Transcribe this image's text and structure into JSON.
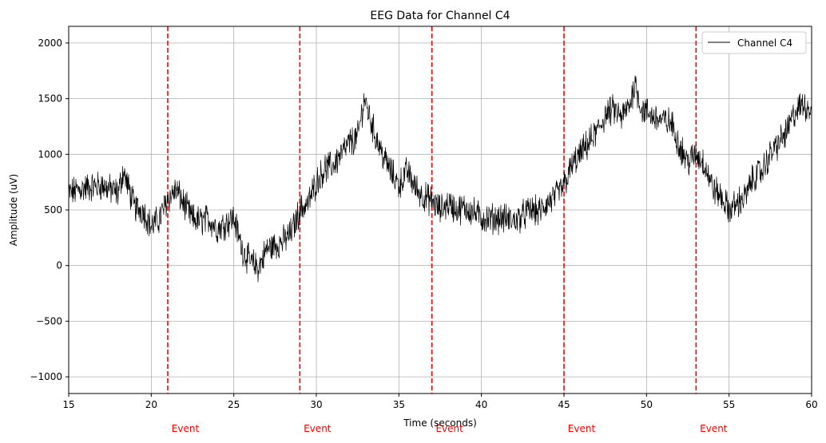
{
  "chart_data": {
    "type": "line",
    "title": "EEG Data for Channel C4",
    "xlabel": "Time (seconds)",
    "ylabel": "Amplitude (uV)",
    "xlim": [
      15,
      60
    ],
    "ylim": [
      -1150,
      2150
    ],
    "xticks": [
      15,
      20,
      25,
      30,
      35,
      40,
      45,
      50,
      55,
      60
    ],
    "xtick_labels": [
      "15",
      "20",
      "25",
      "30",
      "35",
      "40",
      "45",
      "50",
      "55",
      "60"
    ],
    "yticks": [
      -1000,
      -500,
      0,
      500,
      1000,
      1500,
      2000
    ],
    "ytick_labels": [
      "−1000",
      "−500",
      "0",
      "500",
      "1000",
      "1500",
      "2000"
    ],
    "grid": true,
    "legend_position": "top-right",
    "series": [
      {
        "name": "Channel C4",
        "color": "#000000",
        "x": [
          15,
          16,
          17,
          18,
          18.3,
          19,
          19.5,
          20,
          20.5,
          21,
          21.5,
          22,
          22.5,
          23,
          23.5,
          24,
          24.5,
          25,
          25.5,
          26,
          26.5,
          27,
          27.5,
          28,
          28.5,
          29,
          29.5,
          30,
          30.5,
          31,
          31.5,
          32,
          32.5,
          32.9,
          33.5,
          34,
          34.5,
          35,
          35.5,
          36,
          36.5,
          37,
          37.5,
          38,
          38.5,
          39,
          39.5,
          40,
          40.5,
          41,
          41.5,
          42,
          42.5,
          43,
          43.5,
          44,
          44.5,
          45,
          45.5,
          46,
          46.5,
          47,
          47.5,
          48,
          48.5,
          49,
          49.3,
          49.7,
          50,
          50.5,
          51,
          51.5,
          52,
          52.5,
          53,
          53.5,
          54,
          54.5,
          55,
          55.5,
          56,
          56.5,
          57,
          57.5,
          58,
          58.5,
          59,
          59.5,
          60
        ],
        "values": [
          650,
          700,
          720,
          650,
          850,
          520,
          500,
          350,
          420,
          600,
          680,
          550,
          420,
          400,
          420,
          330,
          380,
          430,
          150,
          30,
          -20,
          150,
          180,
          220,
          300,
          500,
          560,
          750,
          870,
          900,
          1000,
          1100,
          1150,
          1500,
          1200,
          1000,
          850,
          720,
          850,
          700,
          620,
          580,
          500,
          560,
          500,
          520,
          480,
          430,
          420,
          430,
          420,
          400,
          450,
          500,
          480,
          560,
          620,
          720,
          900,
          1000,
          1100,
          1200,
          1350,
          1400,
          1330,
          1450,
          1650,
          1400,
          1380,
          1330,
          1300,
          1280,
          1080,
          930,
          1000,
          920,
          700,
          620,
          500,
          560,
          620,
          800,
          850,
          1000,
          1100,
          1200,
          1380,
          1450,
          1400
        ]
      }
    ],
    "events": [
      {
        "x": 21,
        "label": "Event"
      },
      {
        "x": 29,
        "label": "Event"
      },
      {
        "x": 37,
        "label": "Event"
      },
      {
        "x": 45,
        "label": "Event"
      },
      {
        "x": 53,
        "label": "Event"
      }
    ],
    "event_color": "#ff0000"
  }
}
